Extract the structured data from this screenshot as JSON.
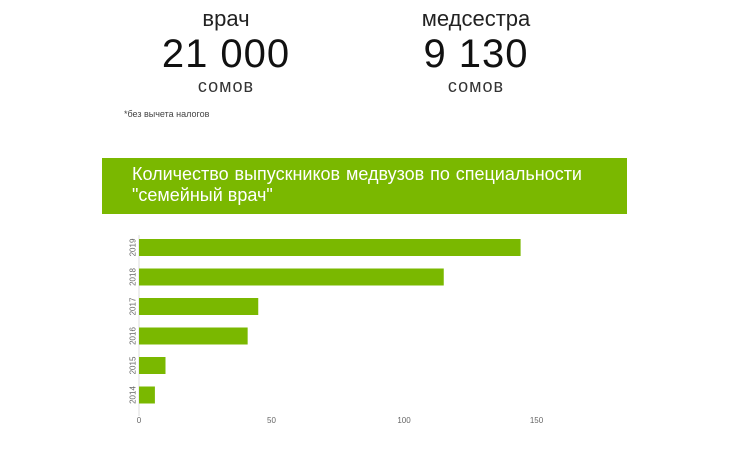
{
  "salaries": {
    "doctor": {
      "title": "врач",
      "amount": "21 000",
      "unit": "сомов"
    },
    "nurse": {
      "title": "медсестра",
      "amount": "9 130",
      "unit": "сомов"
    },
    "footnote": "*без вычета налогов"
  },
  "banner": {
    "text": "Количество выпускников медвузов по специальности \"семейный врач\""
  },
  "colors": {
    "accent": "#7ab800",
    "bar": "#7ab800"
  },
  "chart_data": {
    "type": "bar",
    "orientation": "horizontal",
    "title": "Количество выпускников медвузов по специальности \"семейный врач\"",
    "categories": [
      "2019",
      "2018",
      "2017",
      "2016",
      "2015",
      "2014"
    ],
    "values": [
      144,
      115,
      45,
      41,
      10,
      6
    ],
    "xlim": [
      0,
      180
    ],
    "xticks": [
      "0",
      "50",
      "100",
      "150"
    ],
    "grid": false,
    "legend": "none"
  }
}
